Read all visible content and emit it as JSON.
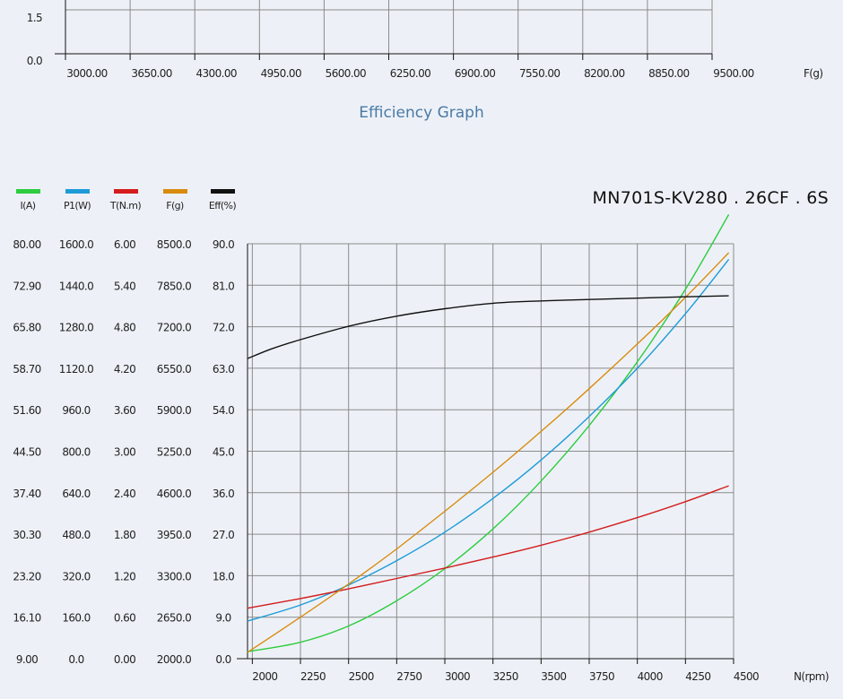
{
  "top_chart": {
    "y_tick_labels": [
      "1.5",
      "0.0"
    ],
    "x_tick_labels": [
      "3000.00",
      "3650.00",
      "4300.00",
      "4950.00",
      "5600.00",
      "6250.00",
      "6900.00",
      "7550.00",
      "8200.00",
      "8850.00",
      "9500.00"
    ],
    "x_unit": "F(g)"
  },
  "section_title": "Efficiency Graph",
  "chart_data": {
    "type": "line",
    "title": "MN701S-KV280 . 26CF . 6S",
    "xlabel": "N(rpm)",
    "xlim": [
      1975,
      4500
    ],
    "x_ticks": [
      "2000",
      "2250",
      "2500",
      "2750",
      "3000",
      "3250",
      "3500",
      "3750",
      "4000",
      "4250",
      "4500"
    ],
    "y_axes": [
      {
        "label": "I(A)",
        "min": 9.0,
        "max": 80.0,
        "ticks": [
          "9.00",
          "16.10",
          "23.20",
          "30.30",
          "37.40",
          "44.50",
          "51.60",
          "58.70",
          "65.80",
          "72.90",
          "80.00"
        ]
      },
      {
        "label": "P1(W)",
        "min": 0,
        "max": 1600,
        "ticks": [
          "0.0",
          "160.0",
          "320.0",
          "480.0",
          "640.0",
          "800.0",
          "960.0",
          "1120.0",
          "1280.0",
          "1440.0",
          "1600.0"
        ]
      },
      {
        "label": "T(N.m)",
        "min": 0,
        "max": 6,
        "ticks": [
          "0.00",
          "0.60",
          "1.20",
          "1.80",
          "2.40",
          "3.00",
          "3.60",
          "4.20",
          "4.80",
          "5.40",
          "6.00"
        ]
      },
      {
        "label": "F(g)",
        "min": 2000,
        "max": 8500,
        "ticks": [
          "2000.0",
          "2650.0",
          "3300.0",
          "3950.0",
          "4600.0",
          "5250.0",
          "5900.0",
          "6550.0",
          "7200.0",
          "7850.0",
          "8500.0"
        ]
      },
      {
        "label": "Eff(%)",
        "min": 0,
        "max": 90,
        "ticks": [
          "0.0",
          "9.0",
          "18.0",
          "27.0",
          "36.0",
          "45.0",
          "54.0",
          "63.0",
          "72.0",
          "81.0",
          "90.0"
        ]
      }
    ],
    "series": [
      {
        "name": "I(A)",
        "color": "#2ecc40",
        "axis": 0,
        "x": [
          1975,
          2250,
          2500,
          2750,
          3000,
          3250,
          3500,
          3750,
          4000,
          4250,
          4475
        ],
        "y": [
          10.2,
          11.8,
          14.6,
          18.9,
          24.4,
          31.2,
          39.4,
          48.9,
          59.8,
          72.2,
          85.0
        ]
      },
      {
        "name": "P1(W)",
        "color": "#1e9bd7",
        "axis": 1,
        "x": [
          1975,
          2250,
          2500,
          2750,
          3000,
          3250,
          3500,
          3750,
          4000,
          4250,
          4475
        ],
        "y": [
          145,
          207,
          284,
          378,
          488,
          618,
          766,
          934,
          1120,
          1330,
          1540
        ]
      },
      {
        "name": "T(N.m)",
        "color": "#d41c1c",
        "axis": 2,
        "x": [
          1975,
          2250,
          2500,
          2750,
          3000,
          3250,
          3500,
          3750,
          4000,
          4250,
          4475
        ],
        "y": [
          0.73,
          0.87,
          1.01,
          1.16,
          1.31,
          1.47,
          1.64,
          1.83,
          2.04,
          2.27,
          2.5
        ]
      },
      {
        "name": "F(g)",
        "color": "#d98b0c",
        "axis": 3,
        "x": [
          1975,
          2250,
          2500,
          2750,
          3000,
          3250,
          3500,
          3750,
          4000,
          4250,
          4475
        ],
        "y": [
          2100,
          2650,
          3170,
          3720,
          4310,
          4920,
          5560,
          6230,
          6930,
          7660,
          8360
        ]
      },
      {
        "name": "Eff(%)",
        "color": "#111111",
        "axis": 4,
        "x": [
          1975,
          2100,
          2250,
          2500,
          2750,
          3000,
          3250,
          3500,
          3750,
          4000,
          4250,
          4475
        ],
        "y": [
          65.1,
          67.2,
          69.2,
          72.1,
          74.3,
          75.9,
          77.1,
          77.6,
          77.9,
          78.2,
          78.5,
          78.7
        ]
      }
    ],
    "grid": true,
    "legend": "top-left"
  }
}
